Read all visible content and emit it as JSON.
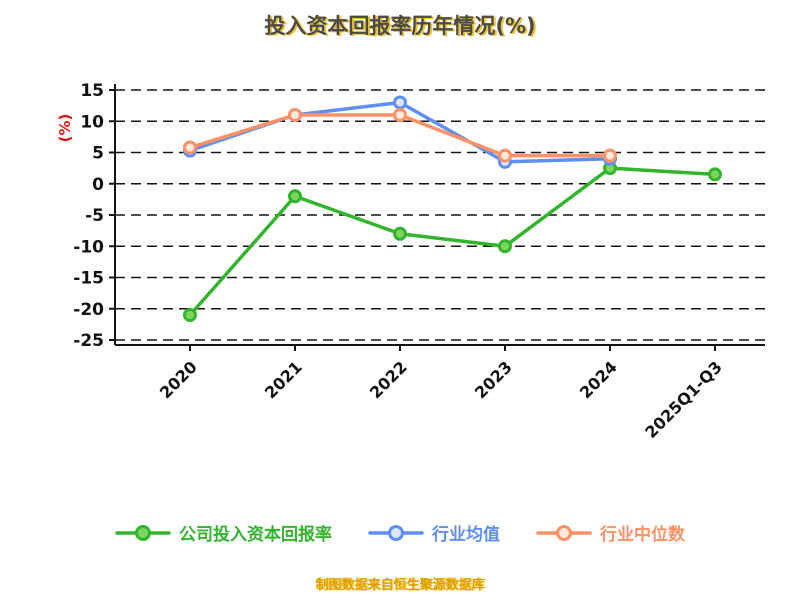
{
  "page": {
    "background": "#ffffff"
  },
  "chart_data": {
    "type": "line",
    "title": "投入资本回报率历年情况(%)",
    "ylabel": "(%)",
    "footer": "制图数据来自恒生聚源数据库",
    "categories": [
      "2020",
      "2021",
      "2022",
      "2023",
      "2024",
      "2025Q1-Q3"
    ],
    "series": [
      {
        "name": "公司投入资本回报率",
        "color": "#33b42d",
        "marker_fill": "#7ed55e",
        "values": [
          -21,
          -2,
          -8,
          -10,
          2.5,
          1.5
        ]
      },
      {
        "name": "行业均值",
        "color": "#5f8ff3",
        "marker_fill": "#dbe6ff",
        "values": [
          5.3,
          11,
          13,
          3.5,
          4,
          null
        ]
      },
      {
        "name": "行业中位数",
        "color": "#ff9166",
        "marker_fill": "#ffe9dc",
        "values": [
          5.8,
          11,
          11,
          4.5,
          4.5,
          null
        ]
      }
    ],
    "ylim": [
      -25,
      15
    ],
    "yticks": [
      15,
      10,
      5,
      0,
      -5,
      -10,
      -15,
      -20,
      -25
    ],
    "grid": true,
    "grid_style": "dashed",
    "legend_position": "bottom"
  }
}
